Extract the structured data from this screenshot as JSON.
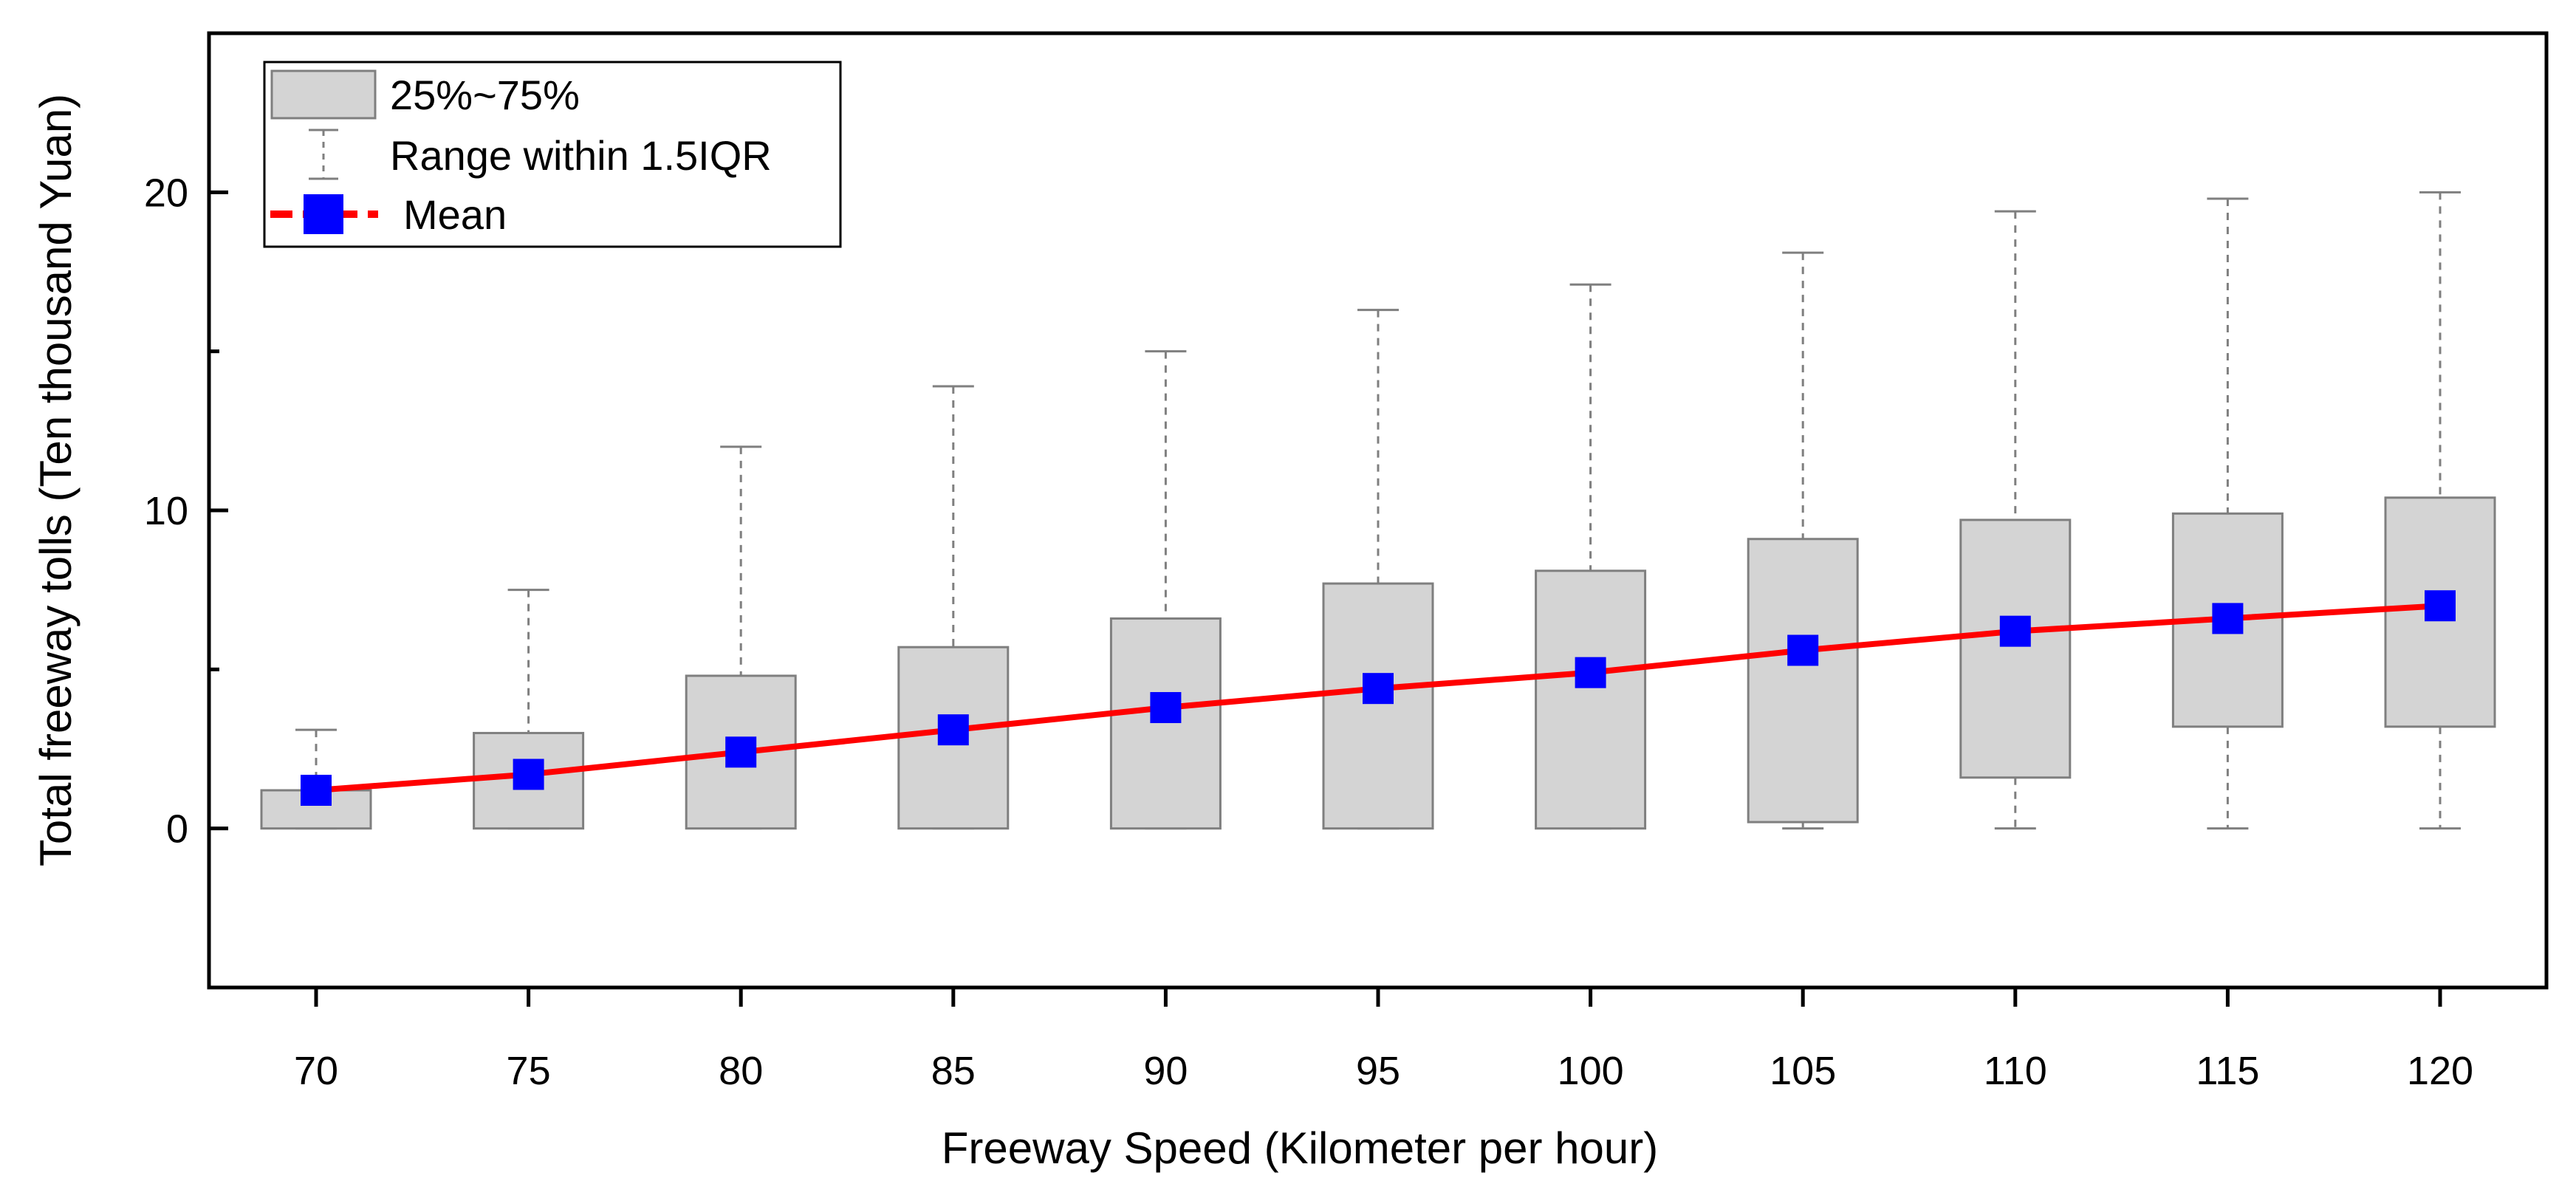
{
  "chart_data": {
    "type": "box",
    "xlabel": "Freeway Speed (Kilometer per hour)",
    "ylabel": "Total freeway tolls (Ten thousand Yuan)",
    "ylim": [
      -5,
      25
    ],
    "yticks_labeled": [
      0,
      10,
      20
    ],
    "yticks_minor": [
      -5,
      5,
      15,
      25
    ],
    "categories": [
      "70",
      "75",
      "80",
      "85",
      "90",
      "95",
      "100",
      "105",
      "110",
      "115",
      "120"
    ],
    "whisker_low": [
      0,
      0,
      0,
      0,
      0,
      0,
      0,
      0,
      0,
      0,
      0
    ],
    "q1": [
      0,
      0,
      0,
      0,
      0,
      0,
      0,
      0.2,
      1.6,
      3.2,
      3.2
    ],
    "q3": [
      1.2,
      3.0,
      4.8,
      5.7,
      6.6,
      7.7,
      8.1,
      9.1,
      9.7,
      9.9,
      10.4
    ],
    "whisker_high": [
      3.1,
      7.5,
      12.0,
      13.9,
      15.0,
      16.3,
      17.1,
      18.1,
      19.4,
      19.8,
      20.0
    ],
    "mean": [
      1.2,
      1.7,
      2.4,
      3.1,
      3.8,
      4.4,
      4.9,
      5.6,
      6.2,
      6.6,
      7.0
    ],
    "legend": {
      "box": "25%~75%",
      "whisker": "Range within 1.5IQR",
      "mean": "Mean"
    },
    "legend_position": "top-left",
    "colors": {
      "box_fill": "#d4d4d4",
      "box_stroke": "#7f7f7f",
      "whisker": "#7f7f7f",
      "mean_line": "#ff0000",
      "mean_marker": "#0000ff",
      "axis": "#000000"
    }
  }
}
